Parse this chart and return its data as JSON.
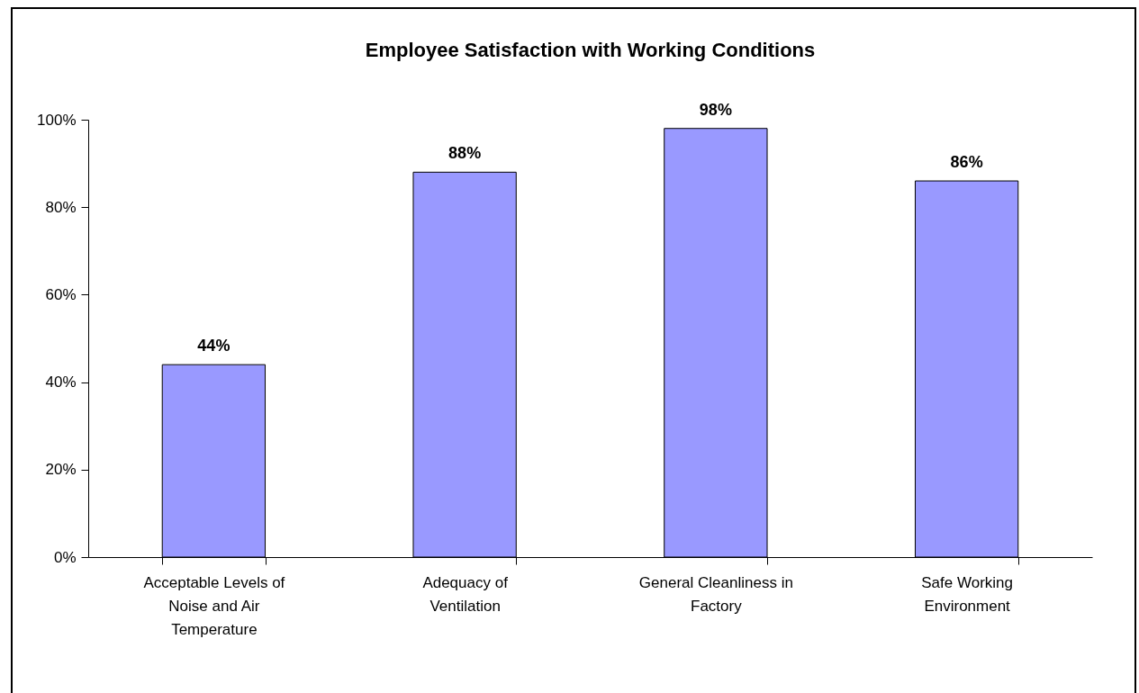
{
  "chart_data": {
    "type": "bar",
    "title": "Employee Satisfaction with Working Conditions",
    "categories": [
      "Acceptable Levels of Noise and Air Temperature",
      "Adequacy of Ventilation",
      "General Cleanliness in Factory",
      "Safe Working Environment"
    ],
    "values": [
      44,
      88,
      98,
      86
    ],
    "value_labels": [
      "44%",
      "88%",
      "98%",
      "86%"
    ],
    "color": "#9999ff",
    "ylim": [
      0,
      100
    ],
    "yticks": [
      {
        "value": 0,
        "label": "0%"
      },
      {
        "value": 20,
        "label": "20%"
      },
      {
        "value": 40,
        "label": "40%"
      },
      {
        "value": 60,
        "label": "60%"
      },
      {
        "value": 80,
        "label": "80%"
      },
      {
        "value": 100,
        "label": "100%"
      }
    ],
    "grid": false
  }
}
